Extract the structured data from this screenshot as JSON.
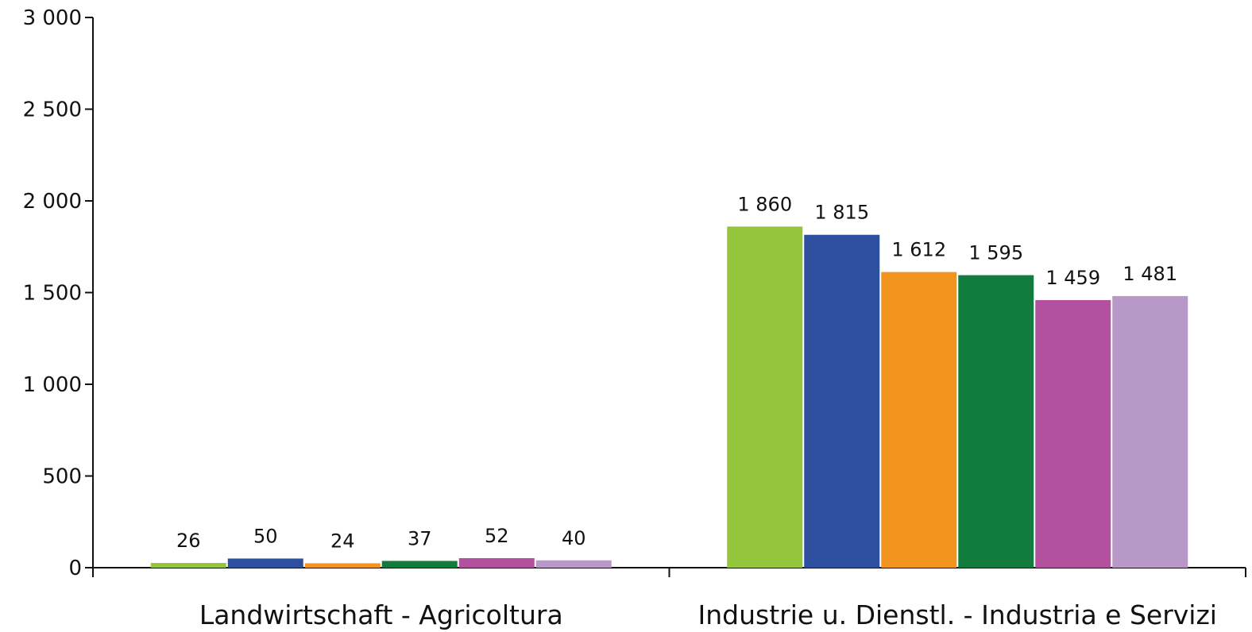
{
  "chart_data": {
    "type": "bar",
    "categories": [
      "Landwirtschaft - Agricoltura",
      "Industrie u. Dienstl. - Industria e Servizi"
    ],
    "series": [
      {
        "values": [
          26,
          1860
        ],
        "color": "#95c43d"
      },
      {
        "values": [
          50,
          1815
        ],
        "color": "#2e4e9e"
      },
      {
        "values": [
          24,
          1612
        ],
        "color": "#f39421"
      },
      {
        "values": [
          37,
          1595
        ],
        "color": "#127c3f"
      },
      {
        "values": [
          52,
          1459
        ],
        "color": "#b3519e"
      },
      {
        "values": [
          40,
          1481
        ],
        "color": "#b898c7"
      }
    ],
    "value_labels": [
      [
        "26",
        "1 860"
      ],
      [
        "50",
        "1 815"
      ],
      [
        "24",
        "1 612"
      ],
      [
        "37",
        "1 595"
      ],
      [
        "52",
        "1 459"
      ],
      [
        "40",
        "1 481"
      ]
    ],
    "ylim": [
      0,
      3000
    ],
    "yticks": [
      0,
      500,
      1000,
      1500,
      2000,
      2500,
      3000
    ],
    "ytick_labels": [
      "0",
      "500",
      "1 000",
      "1 500",
      "2 000",
      "2 500",
      "3 000"
    ],
    "grid": false,
    "legend": false
  }
}
